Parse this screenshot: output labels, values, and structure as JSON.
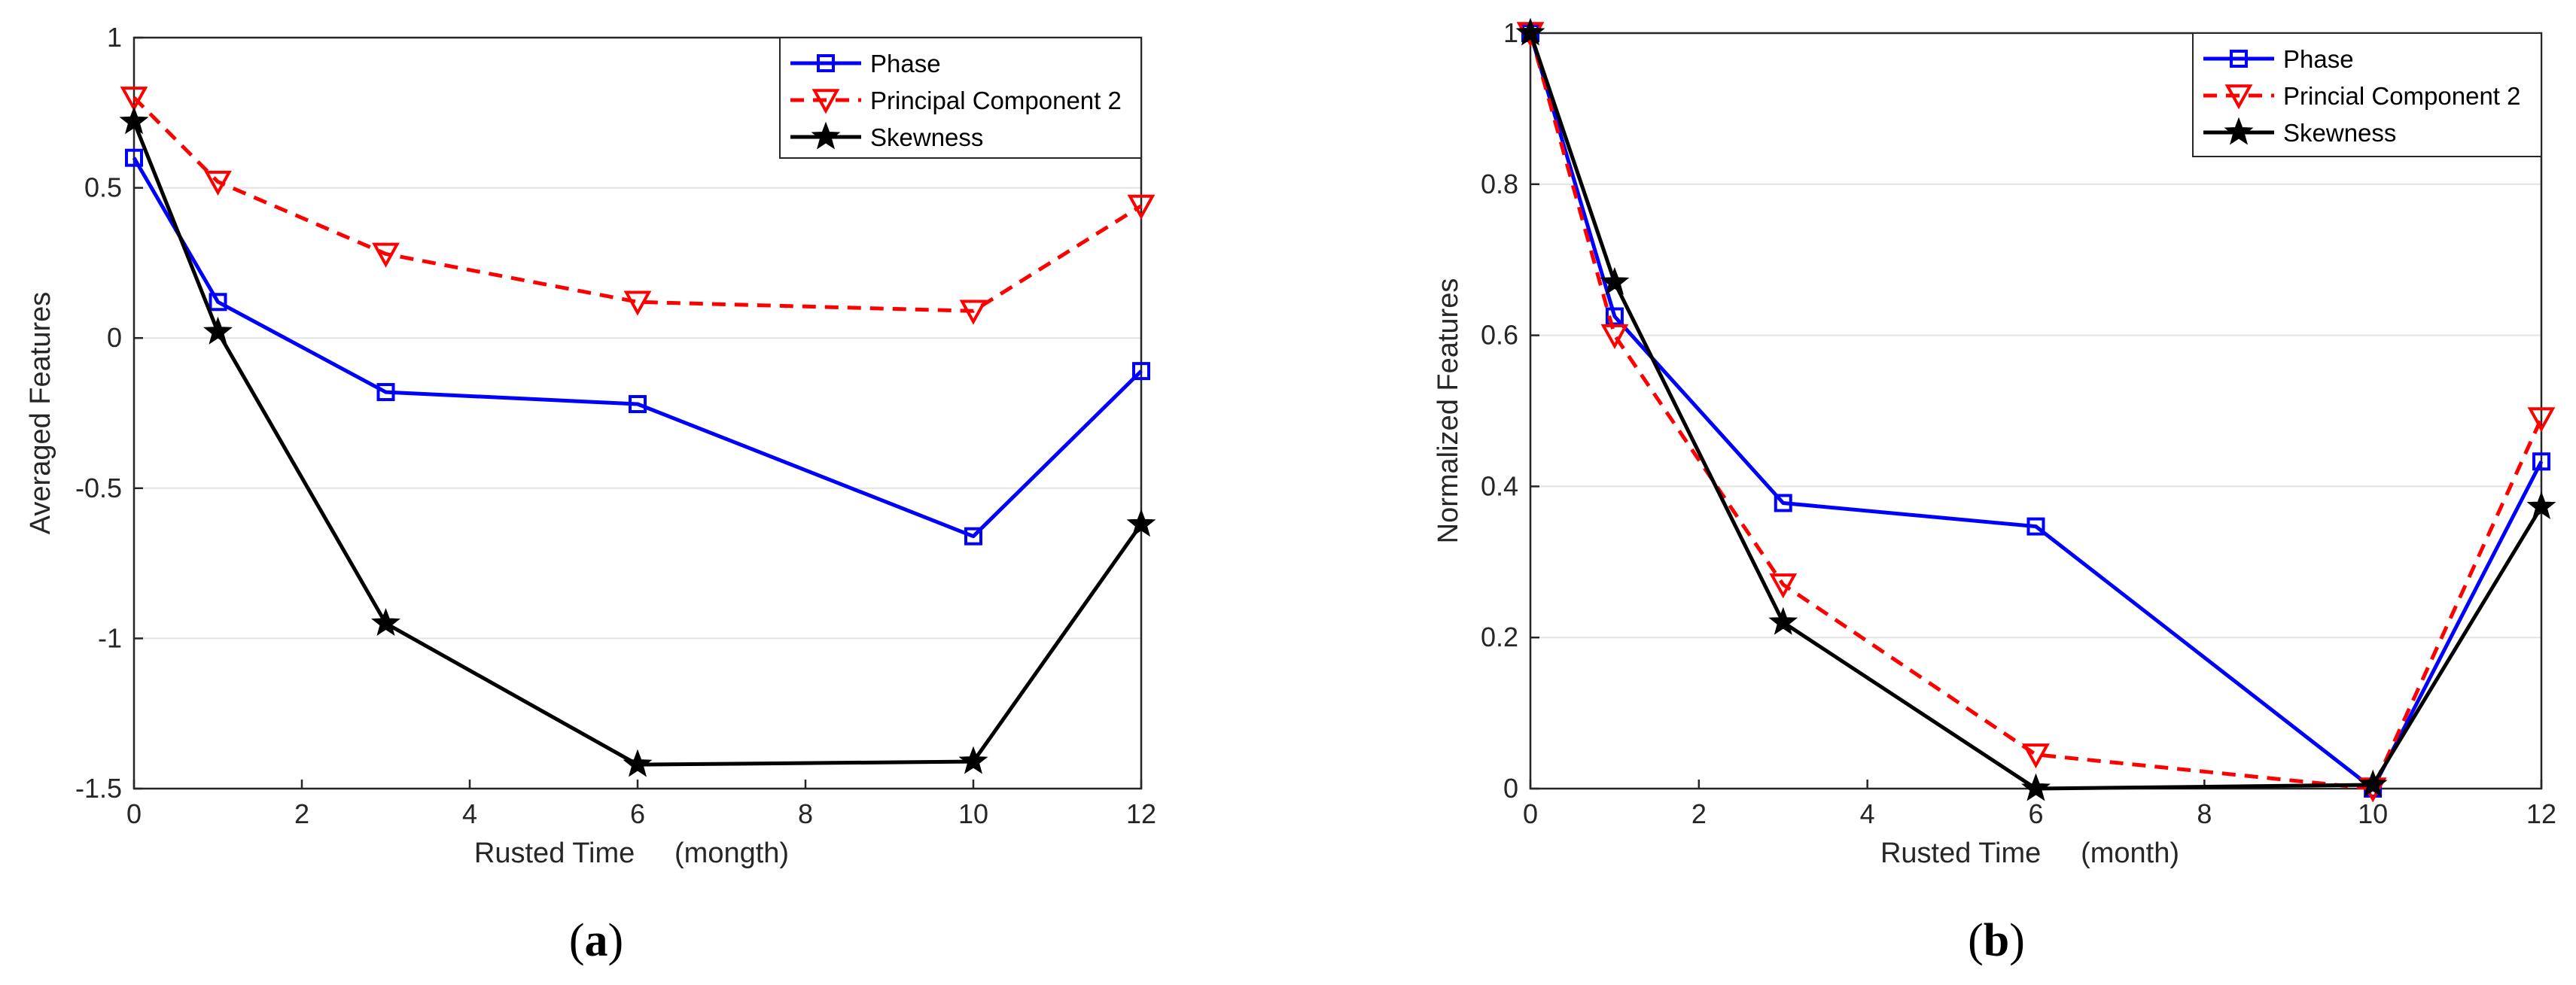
{
  "chart_data": [
    {
      "type": "line",
      "panel_label": {
        "open": "(",
        "letter": "a",
        "close": ")"
      },
      "xlabel": "Rusted Time     (mongth)",
      "ylabel": "Averaged Features",
      "xlim": [
        0,
        12
      ],
      "ylim": [
        -1.5,
        1
      ],
      "xticks": [
        0,
        2,
        4,
        6,
        8,
        10,
        12
      ],
      "yticks": [
        -1.5,
        -1,
        -0.5,
        0,
        0.5,
        1
      ],
      "ytick_labels": [
        "-1.5",
        "-1",
        "-0.5",
        "0",
        "0.5",
        "1"
      ],
      "grid": "horizontal",
      "legend_position": "top-right",
      "x": [
        0,
        1,
        3,
        6,
        10,
        12
      ],
      "series": [
        {
          "name": "Phase",
          "color": "#0000ff",
          "marker": "square",
          "dash": "solid",
          "values": [
            0.6,
            0.12,
            -0.18,
            -0.22,
            -0.66,
            -0.11
          ]
        },
        {
          "name": "Principal Component 2",
          "color": "#ff0000",
          "marker": "triangle-down",
          "dash": "dashed",
          "values": [
            0.8,
            0.52,
            0.28,
            0.12,
            0.09,
            0.44
          ]
        },
        {
          "name": "Skewness",
          "color": "#000000",
          "marker": "star",
          "dash": "solid",
          "values": [
            0.72,
            0.02,
            -0.95,
            -1.42,
            -1.41,
            -0.62
          ]
        }
      ]
    },
    {
      "type": "line",
      "panel_label": {
        "open": "(",
        "letter": "b",
        "close": ")"
      },
      "xlabel": "Rusted Time     (month)",
      "ylabel": "Normalized Features",
      "xlim": [
        0,
        12
      ],
      "ylim": [
        0,
        1
      ],
      "xticks": [
        0,
        2,
        4,
        6,
        8,
        10,
        12
      ],
      "yticks": [
        0,
        0.2,
        0.4,
        0.6,
        0.8,
        1
      ],
      "ytick_labels": [
        "0",
        "0.2",
        "0.4",
        "0.6",
        "0.8",
        "1"
      ],
      "grid": "horizontal",
      "legend_position": "top-right",
      "x": [
        0,
        1,
        3,
        6,
        10,
        12
      ],
      "series": [
        {
          "name": "Phase",
          "color": "#0000ff",
          "marker": "square",
          "dash": "solid",
          "values": [
            1.0,
            0.625,
            0.378,
            0.347,
            0.0,
            0.433
          ]
        },
        {
          "name": "Princial Component 2",
          "color": "#ff0000",
          "marker": "triangle-down",
          "dash": "dashed",
          "values": [
            1.0,
            0.6,
            0.27,
            0.045,
            0.0,
            0.49
          ]
        },
        {
          "name": "Skewness",
          "color": "#000000",
          "marker": "star",
          "dash": "solid",
          "values": [
            1.0,
            0.67,
            0.22,
            0.0,
            0.005,
            0.373
          ]
        }
      ]
    }
  ]
}
